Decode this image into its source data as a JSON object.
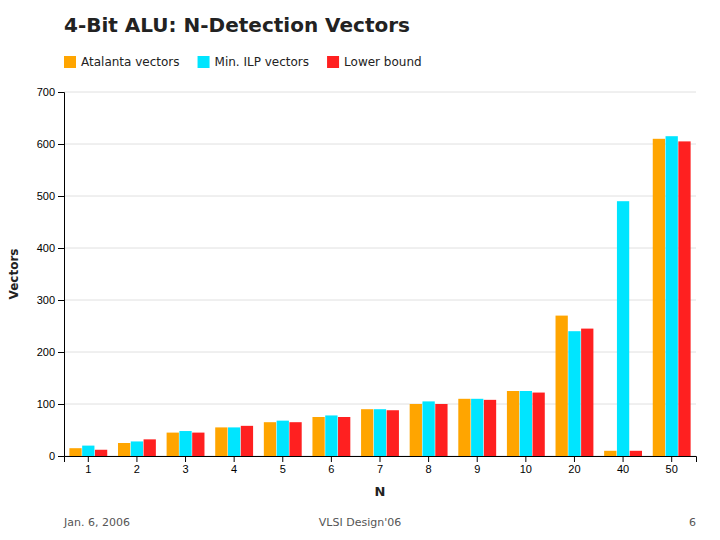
{
  "chart_data": {
    "type": "bar",
    "title": "4-Bit ALU: N-Detection Vectors",
    "x_label": "N",
    "y_label": "Vectors",
    "categories": [
      "1",
      "2",
      "3",
      "4",
      "5",
      "6",
      "7",
      "8",
      "9",
      "10",
      "20",
      "40",
      "50"
    ],
    "series": [
      {
        "name": "Atalanta vectors",
        "color": "#ffa500",
        "values": [
          15,
          25,
          45,
          55,
          65,
          75,
          90,
          100,
          110,
          125,
          270,
          10,
          610
        ]
      },
      {
        "name": "Min. ILP vectors",
        "color": "#00e5ff",
        "values": [
          20,
          28,
          48,
          55,
          68,
          78,
          90,
          105,
          110,
          125,
          240,
          490,
          615
        ]
      },
      {
        "name": "Lower bound",
        "color": "#ff2020",
        "values": [
          12,
          32,
          45,
          58,
          65,
          75,
          88,
          100,
          108,
          122,
          245,
          10,
          605
        ]
      }
    ],
    "ylim": [
      0,
      700
    ],
    "yticks": [
      0,
      100,
      200,
      300,
      400,
      500,
      600,
      700
    ],
    "grid": true,
    "legend": "upper-left",
    "annotations": [
      "Jan. 6, 2006",
      "VLSI Design'06",
      "6"
    ]
  }
}
